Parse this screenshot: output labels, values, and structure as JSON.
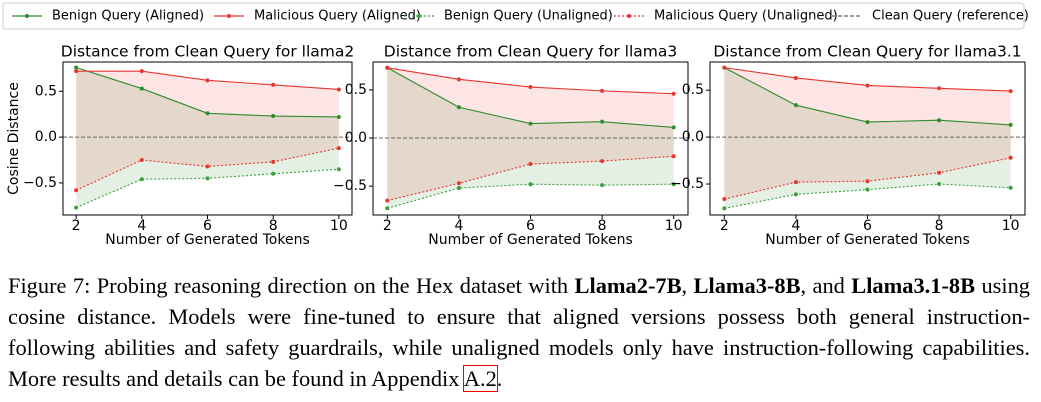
{
  "legend": [
    {
      "name": "Benign Query (Aligned)",
      "color": "#2e8b2e",
      "linestyle": "solid"
    },
    {
      "name": "Malicious Query (Aligned)",
      "color": "#e8352e",
      "linestyle": "solid"
    },
    {
      "name": "Benign Query (Unaligned)",
      "color": "#3c9e3c",
      "linestyle": "dotted"
    },
    {
      "name": "Malicious Query (Unaligned)",
      "color": "#e8352e",
      "linestyle": "dotted"
    },
    {
      "name": "Clean Query (reference)",
      "color": "#666666",
      "linestyle": "dashed",
      "value": 0
    }
  ],
  "chart_data": [
    {
      "type": "line",
      "title": "Distance from Clean Query for llama2",
      "xlabel": "Number of Generated Tokens",
      "ylabel": "Cosine Distance",
      "x": [
        2,
        4,
        6,
        8,
        10
      ],
      "xlim": [
        1.6,
        10.4
      ],
      "xticks": [
        2,
        4,
        6,
        8,
        10
      ],
      "ylim": [
        -0.85,
        0.82
      ],
      "yticks": [
        {
          "value": -0.5,
          "label": "−0.5"
        },
        {
          "value": 0,
          "label": "0.0"
        },
        0.5
      ],
      "series": [
        {
          "values": [
            0.76,
            0.53,
            0.26,
            0.23,
            0.22
          ]
        },
        {
          "values": [
            0.72,
            0.72,
            0.62,
            0.57,
            0.52
          ]
        },
        {
          "values": [
            -0.77,
            -0.46,
            -0.45,
            -0.4,
            -0.35
          ]
        },
        {
          "values": [
            -0.58,
            -0.25,
            -0.32,
            -0.27,
            -0.12
          ]
        }
      ]
    },
    {
      "type": "line",
      "title": "Distance from Clean Query for llama3",
      "xlabel": "Number of Generated Tokens",
      "x": [
        2,
        4,
        6,
        8,
        10
      ],
      "xlim": [
        1.6,
        10.4
      ],
      "xticks": [
        2,
        4,
        6,
        8,
        10
      ],
      "ylim": [
        -0.8,
        0.79
      ],
      "yticks": [
        {
          "value": -0.5,
          "label": "−0.5"
        },
        {
          "value": 0,
          "label": "0.0"
        },
        0.5
      ],
      "series": [
        {
          "values": [
            0.73,
            0.32,
            0.15,
            0.17,
            0.11
          ]
        },
        {
          "values": [
            0.73,
            0.61,
            0.53,
            0.49,
            0.46
          ]
        },
        {
          "values": [
            -0.73,
            -0.52,
            -0.48,
            -0.49,
            -0.48
          ]
        },
        {
          "values": [
            -0.65,
            -0.47,
            -0.27,
            -0.24,
            -0.19
          ]
        }
      ]
    },
    {
      "type": "line",
      "title": "Distance from Clean Query for llama3.1",
      "xlabel": "Number of Generated Tokens",
      "x": [
        2,
        4,
        6,
        8,
        10
      ],
      "xlim": [
        1.6,
        10.4
      ],
      "xticks": [
        2,
        4,
        6,
        8,
        10
      ],
      "ylim": [
        -0.83,
        0.8
      ],
      "yticks": [
        {
          "value": -0.5,
          "label": "−0.5"
        },
        {
          "value": 0,
          "label": "0.0"
        },
        0.5
      ],
      "series": [
        {
          "values": [
            0.74,
            0.34,
            0.16,
            0.18,
            0.13
          ]
        },
        {
          "values": [
            0.74,
            0.63,
            0.55,
            0.52,
            0.49
          ]
        },
        {
          "values": [
            -0.76,
            -0.61,
            -0.56,
            -0.5,
            -0.54
          ]
        },
        {
          "values": [
            -0.66,
            -0.48,
            -0.47,
            -0.38,
            -0.22
          ]
        }
      ]
    }
  ],
  "caption": [
    "Figure 7: Probing reasoning direction on the Hex dataset with ",
    "Llama2-7B",
    ", ",
    "Llama3-8B",
    ", and ",
    "Llama3.1-8B",
    " using cosine distance. Models were fine-tuned to ensure that aligned versions possess both general instruction-following abilities and safety guardrails, while unaligned models only have instruction-following capabilities. More results and details can be found in Appendix ",
    "A.2",
    "."
  ]
}
